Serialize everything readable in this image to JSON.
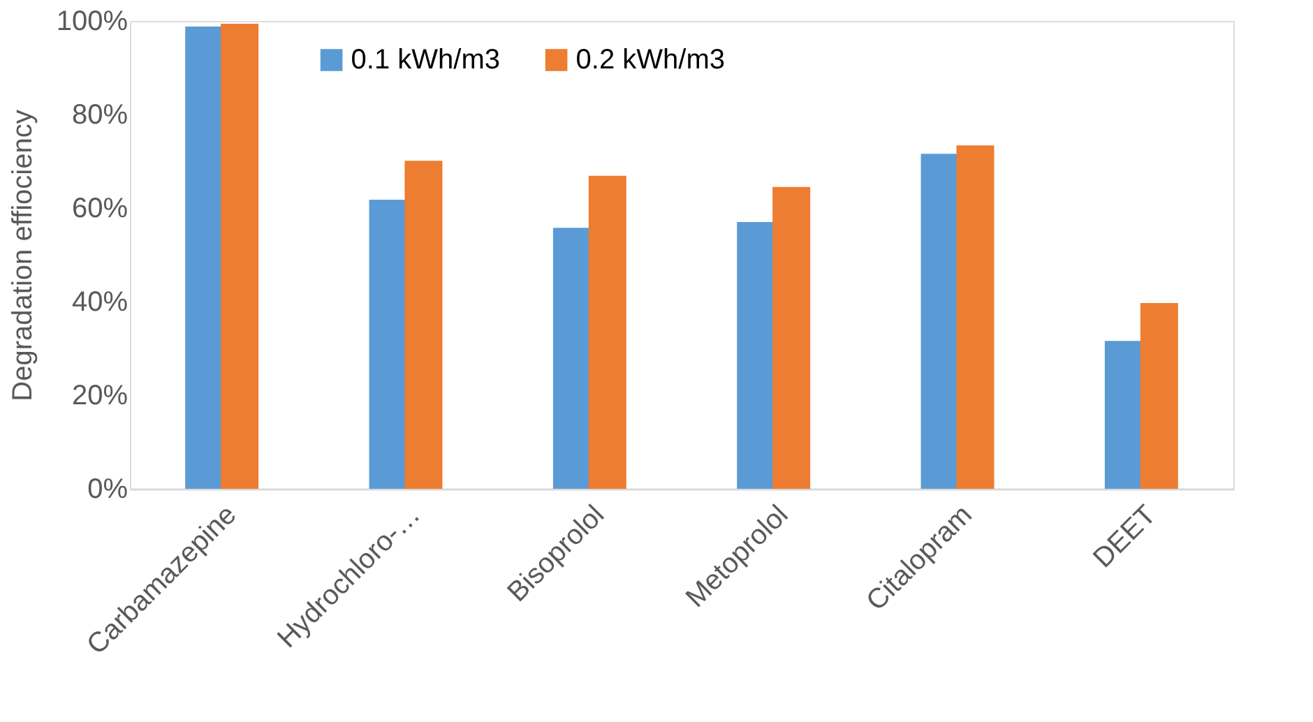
{
  "chart_data": {
    "type": "bar",
    "ylabel": "Degradation effiociency",
    "categories": [
      "Carbamazepine",
      "Hydrochloro-…",
      "Bisoprolol",
      "Metoprolol",
      "Citalopram",
      "DEET"
    ],
    "series": [
      {
        "name": "0.1 kWh/m3",
        "color": "#5b9bd5",
        "values": [
          98.8,
          61.8,
          55.8,
          57,
          71.6,
          31.6
        ]
      },
      {
        "name": "0.2 kWh/m3",
        "color": "#ed7d31",
        "values": [
          99.4,
          70.1,
          66.9,
          64.5,
          73.4,
          39.7
        ]
      }
    ],
    "ylim": [
      0,
      100
    ],
    "yticks": [
      {
        "value": 0,
        "label": "0%"
      },
      {
        "value": 20,
        "label": "20%"
      },
      {
        "value": 40,
        "label": "40%"
      },
      {
        "value": 60,
        "label": "60%"
      },
      {
        "value": 80,
        "label": "80%"
      },
      {
        "value": 100,
        "label": "100%"
      }
    ],
    "grid": false,
    "legend": "top"
  }
}
